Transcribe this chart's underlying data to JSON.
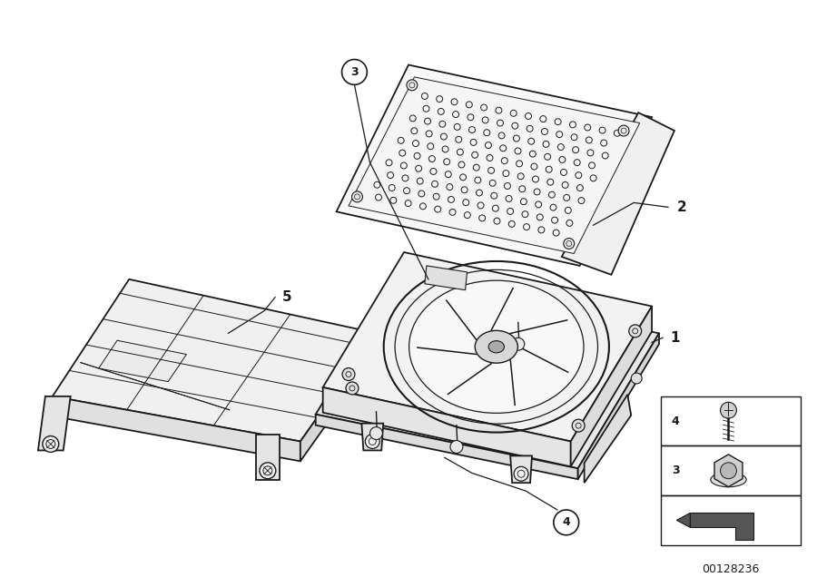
{
  "bg_color": "#ffffff",
  "line_color": "#1a1a1a",
  "title": "",
  "part_number": "00128236",
  "face_colors": {
    "top": "#f5f5f5",
    "side": "#e8e8e8",
    "front": "#eeeeee"
  }
}
